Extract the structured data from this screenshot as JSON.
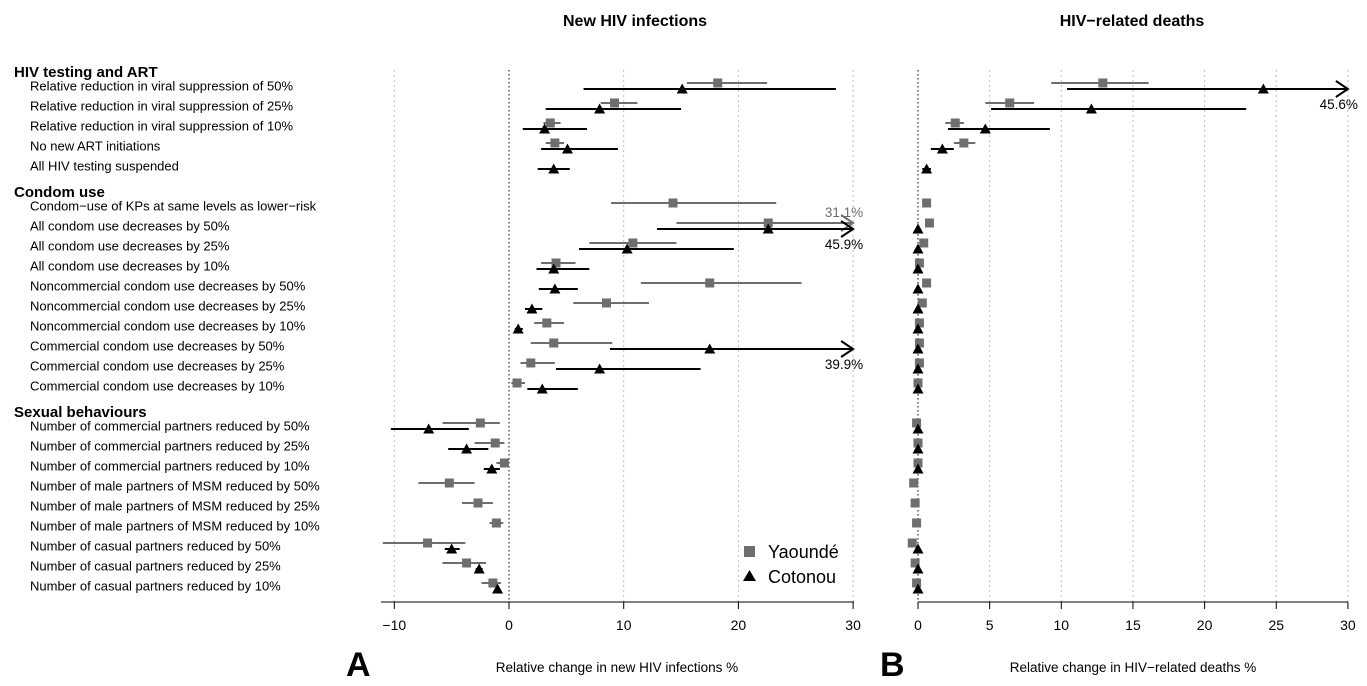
{
  "chart_data": [
    {
      "type": "scatter",
      "panel_letter": "A",
      "title": "New HIV infections",
      "xlabel": "Relative change in new HIV infections %",
      "xlim": [
        -11,
        30
      ],
      "xticks": [
        -10,
        0,
        10,
        20,
        30
      ],
      "xtick_labels": [
        "−10",
        "0",
        "10",
        "20",
        "30"
      ],
      "grid": "vertical dotted",
      "groups": [
        {
          "label": "HIV testing and ART",
          "rows": [
            0,
            1,
            2,
            3,
            4
          ]
        },
        {
          "label": "Condom use",
          "rows": [
            5,
            6,
            7,
            8,
            9,
            10,
            11,
            12,
            13,
            14
          ]
        },
        {
          "label": "Sexual behaviours",
          "rows": [
            15,
            16,
            17,
            18,
            19,
            20,
            21,
            22,
            23
          ]
        }
      ],
      "categories": [
        "Relative reduction in viral suppression of 50%",
        "Relative reduction in viral suppression of 25%",
        "Relative reduction in viral suppression of 10%",
        "No new ART initiations",
        "All HIV testing suspended",
        "Condom−use of KPs at same levels as lower−risk",
        "All condom use decreases by 50%",
        "All condom use decreases by 25%",
        "All condom use decreases by 10%",
        "Noncommercial condom use decreases by 50%",
        "Noncommercial condom use decreases by 25%",
        "Noncommercial condom use decreases by 10%",
        "Commercial condom use decreases by 50%",
        "Commercial condom use decreases by 25%",
        "Commercial condom use decreases by 10%",
        "Number of commercial partners reduced by 50%",
        "Number of commercial partners reduced by 25%",
        "Number of commercial partners reduced by 10%",
        "Number of male partners of MSM reduced by 50%",
        "Number of male partners of MSM reduced by 25%",
        "Number of male partners of MSM reduced by 10%",
        "Number of casual partners reduced by 50%",
        "Number of casual partners reduced by 25%",
        "Number of casual partners reduced by 10%"
      ],
      "series": [
        {
          "name": "Yaoundé",
          "marker": "square",
          "color": "#6e6e6e",
          "points": [
            {
              "v": 18.2,
              "lo": 15.5,
              "hi": 22.5
            },
            {
              "v": 9.2,
              "lo": 8.0,
              "hi": 11.2
            },
            {
              "v": 3.6,
              "lo": 3.0,
              "hi": 4.5
            },
            {
              "v": 4.0,
              "lo": 3.2,
              "hi": 4.8
            },
            null,
            {
              "v": 14.3,
              "lo": 8.9,
              "hi": 23.3
            },
            {
              "v": 22.6,
              "lo": 14.6,
              "hi": 30,
              "overflow": "31.1%"
            },
            {
              "v": 10.8,
              "lo": 7.0,
              "hi": 14.6
            },
            {
              "v": 4.1,
              "lo": 2.8,
              "hi": 5.8
            },
            {
              "v": 17.5,
              "lo": 11.5,
              "hi": 25.5
            },
            {
              "v": 8.5,
              "lo": 5.6,
              "hi": 12.2
            },
            {
              "v": 3.3,
              "lo": 2.2,
              "hi": 4.8
            },
            {
              "v": 3.9,
              "lo": 1.9,
              "hi": 9.0
            },
            {
              "v": 1.9,
              "lo": 1.0,
              "hi": 4.0
            },
            {
              "v": 0.7,
              "lo": 0.2,
              "hi": 1.4
            },
            {
              "v": -2.5,
              "lo": -5.8,
              "hi": -0.8
            },
            {
              "v": -1.2,
              "lo": -3.0,
              "hi": -0.4
            },
            {
              "v": -0.4,
              "lo": -1.1,
              "hi": 0.0
            },
            {
              "v": -5.2,
              "lo": -7.9,
              "hi": -3.0
            },
            {
              "v": -2.7,
              "lo": -4.1,
              "hi": -1.4
            },
            {
              "v": -1.1,
              "lo": -1.7,
              "hi": -0.5
            },
            {
              "v": -7.1,
              "lo": -11.0,
              "hi": -3.8
            },
            {
              "v": -3.7,
              "lo": -5.8,
              "hi": -2.0
            },
            {
              "v": -1.4,
              "lo": -2.4,
              "hi": -0.7
            }
          ]
        },
        {
          "name": "Cotonou",
          "marker": "triangle",
          "color": "#000000",
          "points": [
            {
              "v": 15.1,
              "lo": 6.5,
              "hi": 28.5
            },
            {
              "v": 7.9,
              "lo": 3.2,
              "hi": 15.0
            },
            {
              "v": 3.1,
              "lo": 1.2,
              "hi": 6.8
            },
            {
              "v": 5.1,
              "lo": 2.8,
              "hi": 9.5
            },
            {
              "v": 3.9,
              "lo": 2.5,
              "hi": 5.3
            },
            null,
            {
              "v": 22.6,
              "lo": 12.9,
              "hi": 30,
              "overflow": "45.9%"
            },
            {
              "v": 10.3,
              "lo": 6.1,
              "hi": 19.6
            },
            {
              "v": 3.9,
              "lo": 2.4,
              "hi": 7.0
            },
            {
              "v": 4.0,
              "lo": 2.6,
              "hi": 6.0
            },
            {
              "v": 2.0,
              "lo": 1.4,
              "hi": 2.9
            },
            {
              "v": 0.8,
              "lo": 0.5,
              "hi": 1.2
            },
            {
              "v": 17.5,
              "lo": 8.8,
              "hi": 30,
              "overflow": "39.9%"
            },
            {
              "v": 7.9,
              "lo": 4.1,
              "hi": 16.7
            },
            {
              "v": 2.9,
              "lo": 1.6,
              "hi": 6.0
            },
            {
              "v": -7.0,
              "lo": -10.3,
              "hi": -3.5
            },
            {
              "v": -3.7,
              "lo": -5.3,
              "hi": -1.8
            },
            {
              "v": -1.5,
              "lo": -2.2,
              "hi": -0.8
            },
            null,
            null,
            null,
            {
              "v": -5.0,
              "lo": -5.6,
              "hi": -4.3
            },
            {
              "v": -2.6,
              "lo": -2.9,
              "hi": -2.3
            },
            {
              "v": -1.0,
              "lo": -1.2,
              "hi": -0.8
            }
          ]
        }
      ],
      "legend": {
        "position": "bottom-right",
        "entries": [
          "Yaoundé",
          "Cotonou"
        ]
      }
    },
    {
      "type": "scatter",
      "panel_letter": "B",
      "title": "HIV−related deaths",
      "xlabel": "Relative change in HIV−related deaths %",
      "xlim": [
        -0.5,
        30
      ],
      "xticks": [
        0,
        5,
        10,
        15,
        20,
        25,
        30
      ],
      "xtick_labels": [
        "0",
        "5",
        "10",
        "15",
        "20",
        "25",
        "30"
      ],
      "grid": "vertical dotted",
      "series": [
        {
          "name": "Yaoundé",
          "marker": "square",
          "color": "#6e6e6e",
          "points": [
            {
              "v": 12.9,
              "lo": 9.3,
              "hi": 16.1
            },
            {
              "v": 6.4,
              "lo": 4.7,
              "hi": 8.1
            },
            {
              "v": 2.6,
              "lo": 1.9,
              "hi": 3.2
            },
            {
              "v": 3.2,
              "lo": 2.5,
              "hi": 4.0
            },
            null,
            {
              "v": 0.6
            },
            {
              "v": 0.8
            },
            {
              "v": 0.4
            },
            {
              "v": 0.1
            },
            {
              "v": 0.6
            },
            {
              "v": 0.3
            },
            {
              "v": 0.1
            },
            {
              "v": 0.1
            },
            {
              "v": 0.1
            },
            {
              "v": 0.0
            },
            {
              "v": -0.1
            },
            {
              "v": 0.0
            },
            {
              "v": 0.0
            },
            {
              "v": -0.3
            },
            {
              "v": -0.2
            },
            {
              "v": -0.1
            },
            {
              "v": -0.4
            },
            {
              "v": -0.2
            },
            {
              "v": -0.1
            }
          ]
        },
        {
          "name": "Cotonou",
          "marker": "triangle",
          "color": "#000000",
          "points": [
            {
              "v": 24.1,
              "lo": 10.4,
              "hi": 30,
              "overflow": "45.6%"
            },
            {
              "v": 12.1,
              "lo": 5.1,
              "hi": 22.9
            },
            {
              "v": 4.7,
              "lo": 2.1,
              "hi": 9.2
            },
            {
              "v": 1.7,
              "lo": 0.9,
              "hi": 2.5
            },
            {
              "v": 0.6,
              "lo": 0.3,
              "hi": 0.9
            },
            null,
            {
              "v": 0.0
            },
            {
              "v": 0.0
            },
            {
              "v": 0.0
            },
            {
              "v": 0.0
            },
            {
              "v": 0.0
            },
            {
              "v": 0.0
            },
            {
              "v": 0.0
            },
            {
              "v": 0.0
            },
            {
              "v": 0.0
            },
            {
              "v": 0.0
            },
            {
              "v": 0.0
            },
            {
              "v": 0.0
            },
            null,
            null,
            null,
            {
              "v": 0.0
            },
            {
              "v": 0.0
            },
            {
              "v": 0.0
            }
          ]
        }
      ]
    }
  ]
}
